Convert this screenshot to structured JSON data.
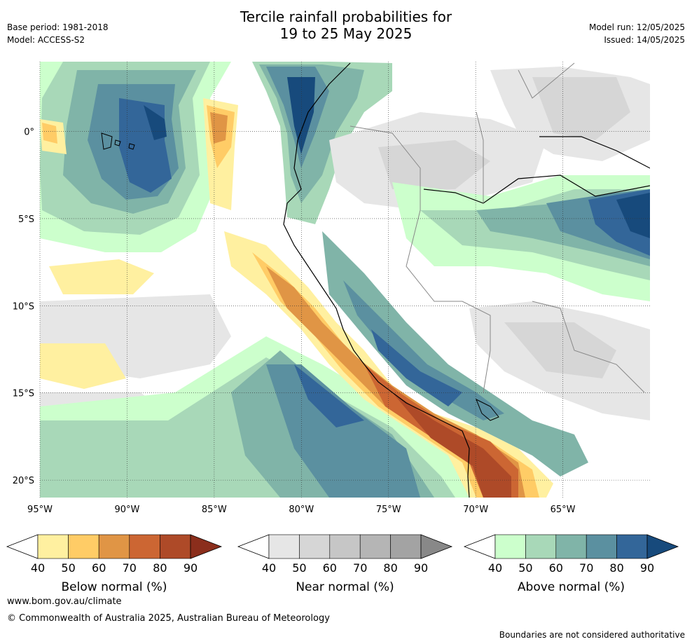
{
  "title": {
    "line1": "Tercile rainfall probabilities for",
    "line2": "19 to 25 May 2025"
  },
  "meta": {
    "base_period": "Base period: 1981-2018",
    "model": "Model: ACCESS-S2",
    "model_run": "Model run: 12/05/2025",
    "issued": "Issued: 14/05/2025"
  },
  "map": {
    "lon_range": [
      -95,
      -60
    ],
    "lat_range": [
      -21,
      4
    ],
    "lon_ticks": [
      {
        "value": -95,
        "label": "95°W"
      },
      {
        "value": -90,
        "label": "90°W"
      },
      {
        "value": -85,
        "label": "85°W"
      },
      {
        "value": -80,
        "label": "80°W"
      },
      {
        "value": -75,
        "label": "75°W"
      },
      {
        "value": -70,
        "label": "70°W"
      },
      {
        "value": -65,
        "label": "65°W"
      }
    ],
    "lat_ticks": [
      {
        "value": 0,
        "label": "0°"
      },
      {
        "value": -5,
        "label": "5°S"
      },
      {
        "value": -10,
        "label": "10°S"
      },
      {
        "value": -15,
        "label": "15°S"
      },
      {
        "value": -20,
        "label": "20°S"
      }
    ]
  },
  "colorbars": [
    {
      "label": "Below normal (%)",
      "ticks": [
        "40",
        "50",
        "60",
        "70",
        "80",
        "90"
      ],
      "colors": [
        "#fff0a0",
        "#ffcc66",
        "#e09545",
        "#cc6633",
        "#ae4a28",
        "#8b2e1c"
      ]
    },
    {
      "label": "Near normal (%)",
      "ticks": [
        "40",
        "50",
        "60",
        "70",
        "80",
        "90"
      ],
      "colors": [
        "#e6e6e6",
        "#d6d6d6",
        "#c6c6c6",
        "#b5b5b5",
        "#a3a3a3",
        "#888888"
      ]
    },
    {
      "label": "Above normal (%)",
      "ticks": [
        "40",
        "50",
        "60",
        "70",
        "80",
        "90"
      ],
      "colors": [
        "#ccffcc",
        "#a8d8b8",
        "#80b4a8",
        "#5b90a0",
        "#336699",
        "#174a7c"
      ]
    }
  ],
  "footer": {
    "url": "www.bom.gov.au/climate",
    "copyright": "© Commonwealth of Australia 2025, Australian Bureau of Meteorology",
    "disclaimer": "Boundaries are not considered authoritative"
  }
}
